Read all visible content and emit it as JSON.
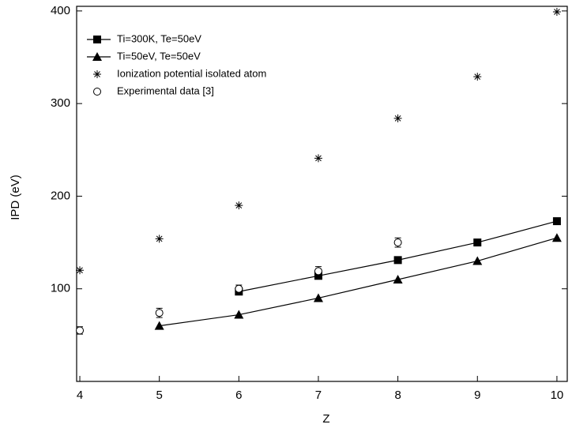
{
  "chart_data": {
    "type": "line",
    "x_label": "Z",
    "y_label": "IPD (eV)",
    "xlim": [
      3.96,
      10.13
    ],
    "ylim": [
      0,
      405
    ],
    "xticks": [
      4,
      5,
      6,
      7,
      8,
      9,
      10
    ],
    "yticks": [
      100,
      200,
      300,
      400
    ],
    "legend": "upper left",
    "series": [
      {
        "name": "Ti=300K, Te=50eV",
        "color": "#000000",
        "marker": "square",
        "line": true,
        "x": [
          6,
          7,
          8,
          9,
          10
        ],
        "values": [
          97,
          114,
          131,
          150,
          173
        ]
      },
      {
        "name": "Ti=50eV, Te=50eV",
        "color": "#000000",
        "marker": "triangle",
        "line": true,
        "x": [
          5,
          6,
          7,
          8,
          9,
          10
        ],
        "values": [
          60,
          72,
          90,
          110,
          130,
          155
        ]
      },
      {
        "name": "Ionization potential isolated atom",
        "color": "#000000",
        "marker": "star",
        "line": false,
        "x": [
          4,
          5,
          6,
          7,
          8,
          9,
          10
        ],
        "values": [
          120,
          154,
          190,
          241,
          284,
          329,
          399
        ]
      },
      {
        "name": "Experimental data [3]",
        "color": "#000000",
        "marker": "circle",
        "line": false,
        "x": [
          4,
          5,
          6,
          7,
          8
        ],
        "values": [
          55,
          74,
          100,
          119,
          150
        ],
        "errors": [
          4,
          5,
          4,
          5,
          5
        ]
      }
    ]
  }
}
